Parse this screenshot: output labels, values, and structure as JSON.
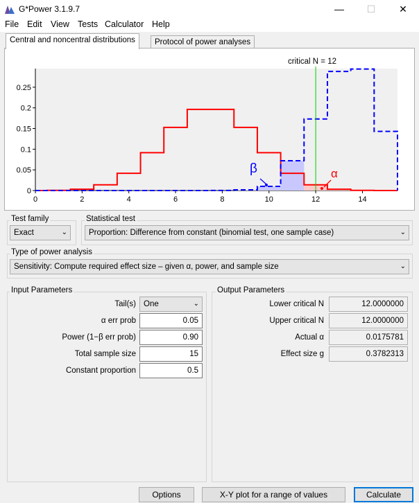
{
  "window": {
    "title": "G*Power 3.1.9.7",
    "minimize_icon": "minimize-icon",
    "maximize_icon": "maximize-icon",
    "close_icon": "close-icon"
  },
  "menu": [
    "File",
    "Edit",
    "View",
    "Tests",
    "Calculator",
    "Help"
  ],
  "tabs": [
    {
      "label": "Central and noncentral distributions",
      "active": true
    },
    {
      "label": "Protocol of power analyses",
      "active": false
    }
  ],
  "plot": {
    "critical_label": "critical N = 12",
    "beta_label": "β",
    "alpha_label": "α",
    "y_ticks": [
      "0.25",
      "0.2",
      "0.15",
      "0.1",
      "0.05",
      "0"
    ],
    "x_ticks": [
      "0",
      "2",
      "4",
      "6",
      "8",
      "10",
      "12",
      "14"
    ],
    "colors": {
      "central": "#ff0000",
      "noncentral": "#0000ff",
      "critical": "#00cc00",
      "beta_fill": "#c8c8ff",
      "alpha_fill": "#ffc8c8"
    }
  },
  "chart_data": {
    "type": "line",
    "xlim": [
      0,
      15.5
    ],
    "ylim": [
      0,
      0.295
    ],
    "critical_x": 12,
    "series": [
      {
        "style": "solid-red",
        "x": [
          0,
          1,
          2,
          3,
          4,
          5,
          6,
          7,
          8,
          9,
          10,
          11,
          12,
          13,
          14,
          15
        ],
        "values": [
          0.0,
          0.0005,
          0.0032,
          0.0139,
          0.0417,
          0.0916,
          0.1527,
          0.1964,
          0.1964,
          0.1527,
          0.0916,
          0.0417,
          0.0139,
          0.0032,
          0.0005,
          0.0
        ]
      },
      {
        "style": "dashed-blue",
        "x": [
          0,
          1,
          2,
          3,
          4,
          5,
          6,
          7,
          8,
          9,
          10,
          11,
          12,
          13,
          14,
          15
        ],
        "values": [
          0,
          0,
          0,
          0,
          0,
          0,
          0,
          0,
          0.0002,
          0.0016,
          0.01,
          0.072,
          0.173,
          0.288,
          0.294,
          0.143
        ]
      }
    ]
  },
  "test_family": {
    "label": "Test family",
    "value": "Exact"
  },
  "statistical_test": {
    "label": "Statistical test",
    "value": "Proportion: Difference from constant (binomial test, one sample case)"
  },
  "power_analysis": {
    "label": "Type of power analysis",
    "value": "Sensitivity: Compute required effect size – given α, power, and sample size"
  },
  "input": {
    "label": "Input Parameters",
    "tails_label": "Tail(s)",
    "tails_value": "One",
    "alpha_label": "α err prob",
    "alpha_value": "0.05",
    "power_label": "Power (1−β err prob)",
    "power_value": "0.90",
    "n_label": "Total sample size",
    "n_value": "15",
    "const_label": "Constant proportion",
    "const_value": "0.5"
  },
  "output": {
    "label": "Output Parameters",
    "lower_label": "Lower critical N",
    "lower_value": "12.0000000",
    "upper_label": "Upper critical N",
    "upper_value": "12.0000000",
    "actual_alpha_label": "Actual α",
    "actual_alpha_value": "0.0175781",
    "effect_label": "Effect size g",
    "effect_value": "0.3782313"
  },
  "buttons": {
    "options": "Options",
    "xy_plot": "X-Y plot for a range of values",
    "calculate": "Calculate"
  }
}
